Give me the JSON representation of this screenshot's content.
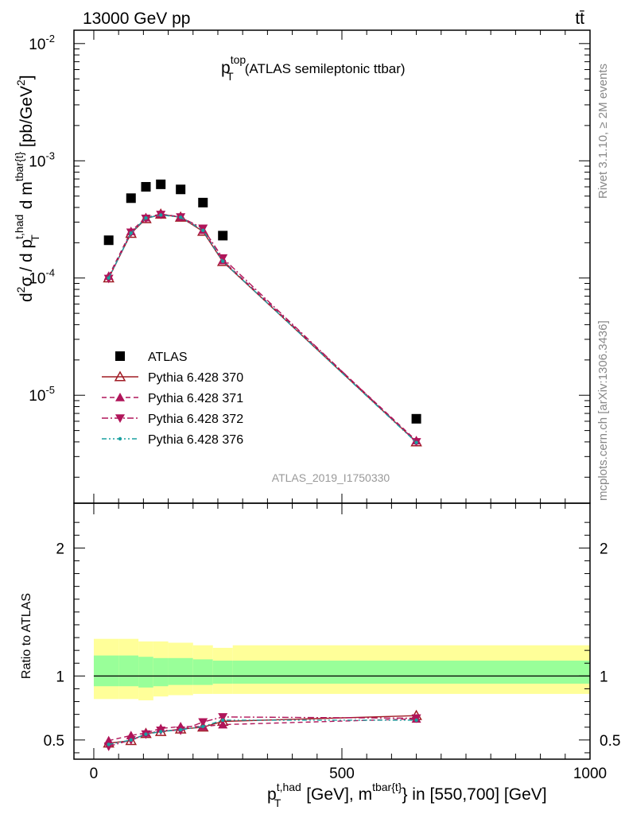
{
  "header": {
    "energy_label": "13000 GeV pp",
    "process_label": "tt̄"
  },
  "side_labels": {
    "rivet": "Rivet 3.1.10, ≥ 2M events",
    "mcplots": "mcplots.cern.ch [arXiv:1306.3436]"
  },
  "chart_data": [
    {
      "type": "scatter",
      "panel": "main",
      "title": "p_T^top (ATLAS semileptonic ttbar)",
      "analysis_label": "ATLAS_2019_I1750330",
      "ylabel": "d²σ / d p_T^{t,had} d m^{tbar{t}} [pb/GeV²]",
      "y_scale": "log",
      "ylim": [
        1.2e-06,
        0.013
      ],
      "xlim": [
        -40,
        1000
      ],
      "y_ticks": [
        "10^{-5}",
        "10^{-4}",
        "10^{-3}",
        "10^{-2}"
      ],
      "legend_position": "lower-left",
      "series": [
        {
          "name": "ATLAS",
          "marker": "square",
          "color": "#000000",
          "x": [
            30,
            75,
            105,
            135,
            175,
            220,
            260,
            650
          ],
          "y": [
            0.00021,
            0.00048,
            0.0006,
            0.00063,
            0.00057,
            0.00044,
            0.00023,
            6.3e-06
          ]
        },
        {
          "name": "Pythia 6.428 370",
          "marker": "triangle-up-open",
          "line": "solid",
          "color": "#a01b24",
          "x": [
            30,
            75,
            105,
            135,
            175,
            220,
            260,
            650
          ],
          "y": [
            0.0001,
            0.00024,
            0.00032,
            0.00035,
            0.00033,
            0.00025,
            0.000138,
            4e-06
          ]
        },
        {
          "name": "Pythia 6.428 371",
          "marker": "triangle-up",
          "line": "dashed",
          "color": "#b0155a",
          "x": [
            30,
            75,
            105,
            135,
            175,
            220,
            260,
            650
          ],
          "y": [
            0.000104,
            0.00025,
            0.000328,
            0.000352,
            0.000332,
            0.000256,
            0.000141,
            4.1e-06
          ]
        },
        {
          "name": "Pythia 6.428 372",
          "marker": "triangle-down",
          "line": "dashdot",
          "color": "#b0155a",
          "x": [
            30,
            75,
            105,
            135,
            175,
            220,
            260,
            650
          ],
          "y": [
            9.9e-05,
            0.000245,
            0.000322,
            0.000348,
            0.000331,
            0.000265,
            0.000148,
            4e-06
          ]
        },
        {
          "name": "Pythia 6.428 376",
          "marker": "dot",
          "line": "dashdotdot",
          "color": "#1aa0a0",
          "x": [
            30,
            75,
            105,
            135,
            175,
            220,
            260,
            650
          ],
          "y": [
            0.0001,
            0.000242,
            0.000325,
            0.000345,
            0.00033,
            0.000255,
            0.000139,
            3.95e-06
          ]
        }
      ]
    },
    {
      "type": "line",
      "panel": "ratio",
      "ylabel": "Ratio to ATLAS",
      "xlabel": "p_T^{t,had} [GeV], m^{tbar{t}} in [550,700] [GeV]",
      "xlim": [
        -40,
        1000
      ],
      "ylim": [
        0.35,
        2.35
      ],
      "x_ticks": [
        0,
        500,
        1000
      ],
      "y_ticks": [
        0.5,
        1,
        2
      ],
      "bands": {
        "bin_edges": [
          0,
          50,
          90,
          120,
          150,
          200,
          240,
          280,
          1000
        ],
        "yellow_low": [
          0.82,
          0.82,
          0.81,
          0.84,
          0.85,
          0.86,
          0.86,
          0.86
        ],
        "yellow_high": [
          1.29,
          1.29,
          1.27,
          1.27,
          1.26,
          1.24,
          1.22,
          1.24
        ],
        "green_low": [
          0.92,
          0.92,
          0.91,
          0.92,
          0.93,
          0.93,
          0.94,
          0.94
        ],
        "green_high": [
          1.16,
          1.16,
          1.15,
          1.14,
          1.14,
          1.13,
          1.12,
          1.12
        ],
        "yellow_color": "#ffff99",
        "green_color": "#99ff99"
      },
      "series": [
        {
          "name": "Pythia 6.428 370",
          "x": [
            30,
            75,
            105,
            135,
            175,
            220,
            260,
            650
          ],
          "y": [
            0.475,
            0.495,
            0.55,
            0.565,
            0.585,
            0.6,
            0.645,
            0.69
          ]
        },
        {
          "name": "Pythia 6.428 371",
          "x": [
            30,
            75,
            105,
            135,
            175,
            220,
            260,
            650
          ],
          "y": [
            0.495,
            0.535,
            0.555,
            0.59,
            0.605,
            0.605,
            0.62,
            0.665
          ]
        },
        {
          "name": "Pythia 6.428 372",
          "x": [
            30,
            75,
            105,
            135,
            175,
            220,
            260,
            650
          ],
          "y": [
            0.45,
            0.5,
            0.545,
            0.575,
            0.575,
            0.64,
            0.68,
            0.67
          ]
        },
        {
          "name": "Pythia 6.428 376",
          "x": [
            30,
            75,
            105,
            135,
            175,
            220,
            260,
            650
          ],
          "y": [
            0.465,
            0.5,
            0.545,
            0.565,
            0.58,
            0.605,
            0.655,
            0.655
          ]
        }
      ]
    }
  ]
}
